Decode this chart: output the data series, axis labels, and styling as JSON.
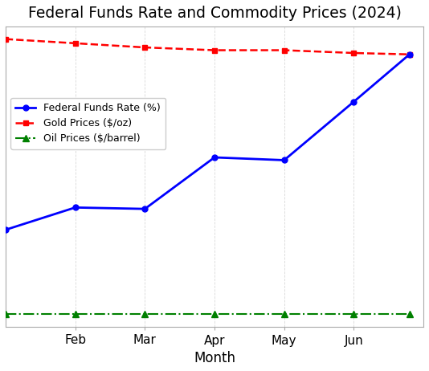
{
  "title": "Federal Funds Rate and Commodity Prices (2024)",
  "xlabel": "Month",
  "month_labels": [
    "Feb",
    "Mar",
    "Apr",
    "May",
    "Jun"
  ],
  "month_tick_positions": [
    2,
    3,
    4,
    5,
    6
  ],
  "fed_funds_x": [
    1,
    2,
    3,
    4,
    5,
    6,
    6.8
  ],
  "fed_funds_y": [
    3.2,
    4.0,
    3.95,
    5.8,
    5.7,
    7.8,
    9.5
  ],
  "gold_x": [
    1,
    2,
    3,
    4,
    5,
    6,
    6.8
  ],
  "gold_y": [
    10.05,
    9.9,
    9.75,
    9.65,
    9.65,
    9.55,
    9.5
  ],
  "oil_x": [
    1,
    2,
    3,
    4,
    5,
    6,
    6.8
  ],
  "oil_y": [
    0.18,
    0.18,
    0.18,
    0.18,
    0.18,
    0.18,
    0.18
  ],
  "fed_color": "#0000ff",
  "gold_color": "#ff0000",
  "oil_color": "#008000",
  "background_color": "#ffffff",
  "grid_color": "#c8c8c8",
  "ylim": [
    -0.3,
    10.5
  ],
  "xlim": [
    1.0,
    7.0
  ],
  "legend_fed": "Federal Funds Rate (%)",
  "legend_gold": "Gold Prices ($/oz)",
  "legend_oil": "Oil Prices ($/barrel)"
}
